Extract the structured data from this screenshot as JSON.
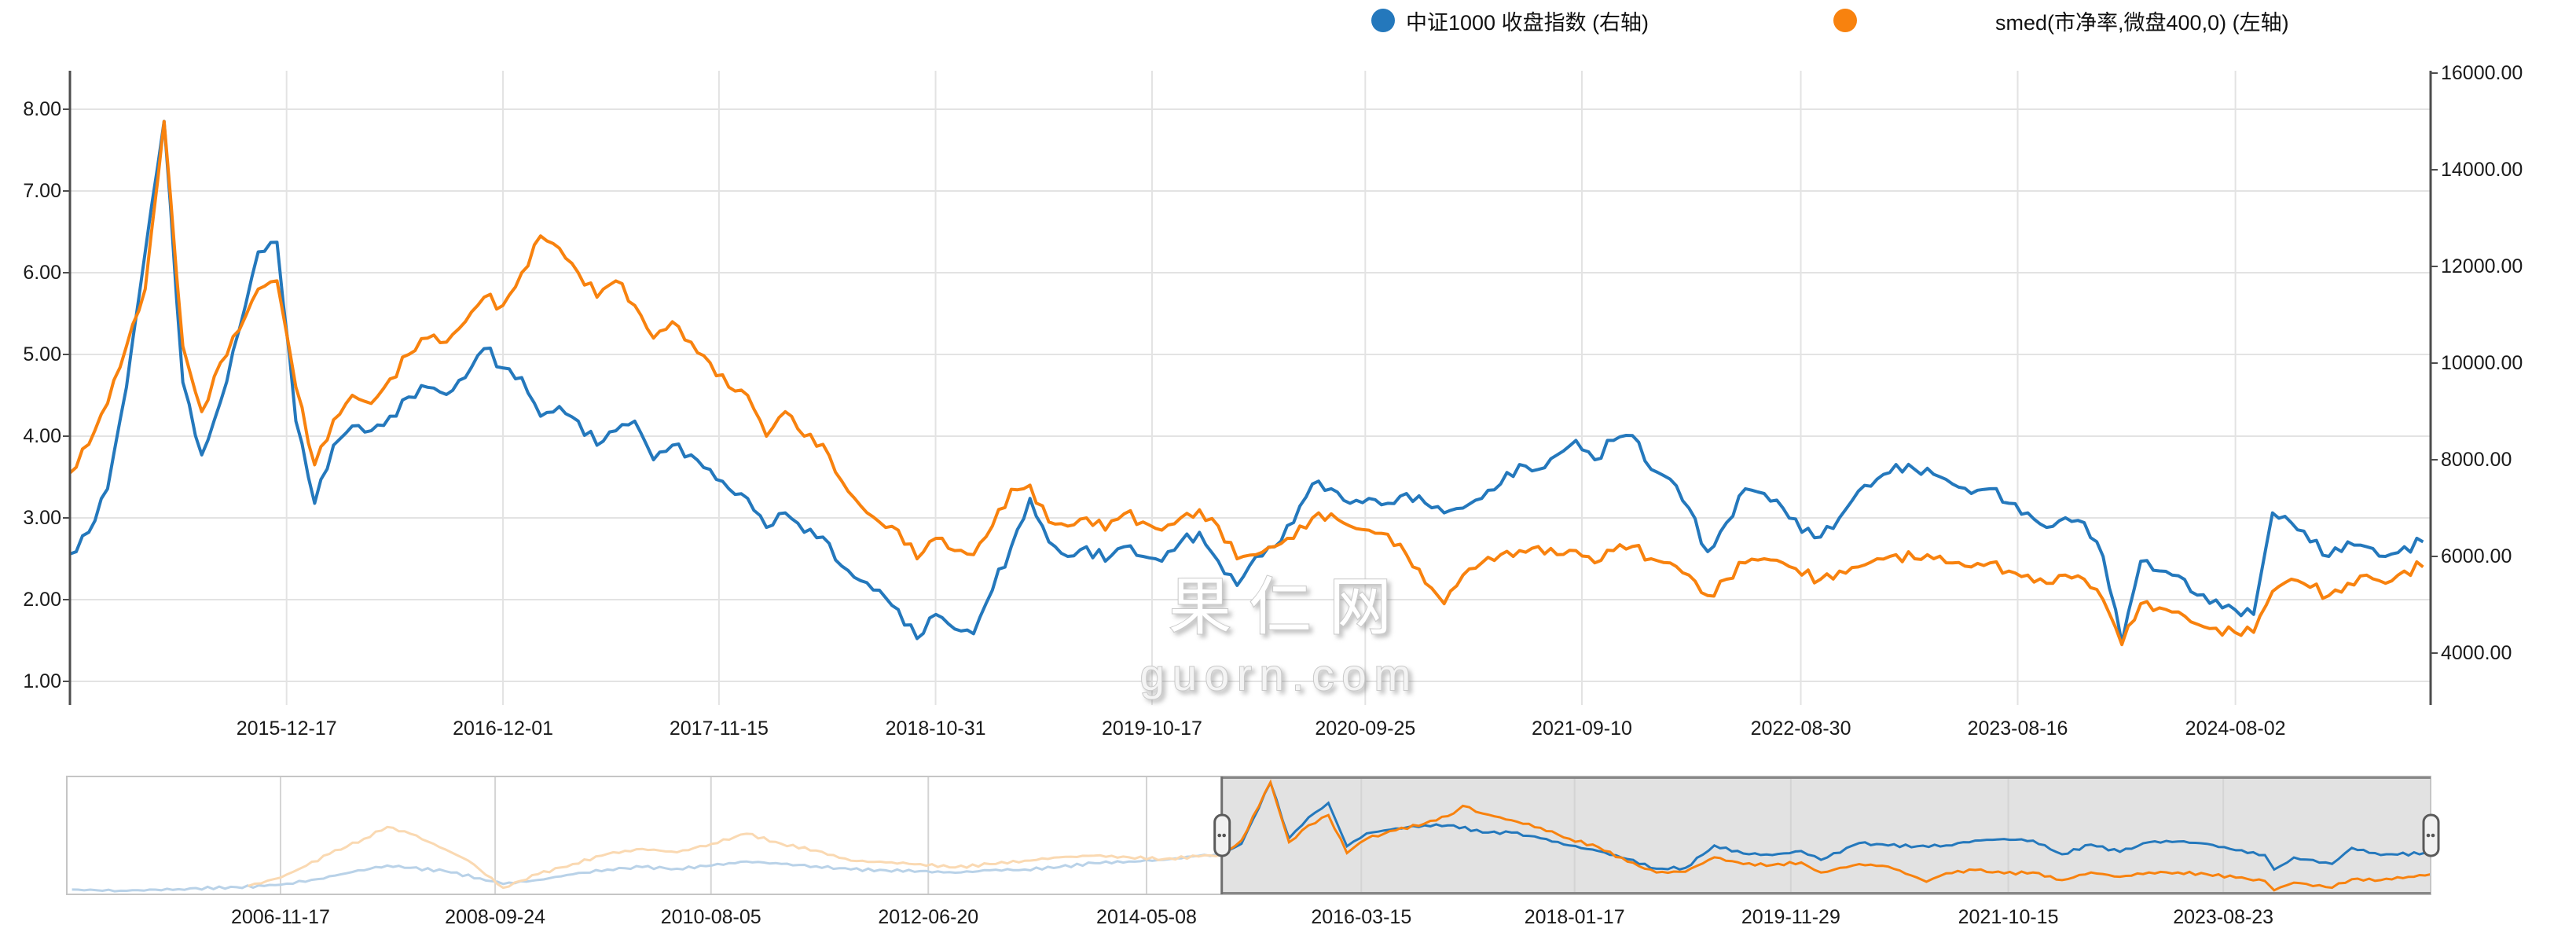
{
  "page": {
    "background": "#ffffff",
    "site": "guorn.com"
  },
  "legend": {
    "items": [
      {
        "label": "中证1000 收盘指数 (右轴)",
        "color": "#2478BC",
        "marker": "circle-icon"
      },
      {
        "label": "smed(市净率,微盘400,0) (左轴)",
        "color": "#F8820E",
        "marker": "circle-icon"
      }
    ]
  },
  "watermark": {
    "line1": "果仁网",
    "line2": "guorn.com"
  },
  "colors": {
    "blue_series": "#2478BC",
    "orange_series": "#F8820E",
    "blue_faded": "#B9D2E8",
    "orange_faded": "#FAD9B2",
    "gridline": "#e3e3e3",
    "axis_line": "#4d4d4d",
    "navigator_mask": "#e2e2e2",
    "navigator_border": "#c5c5c5",
    "selection_border": "#878787"
  },
  "chart_data": [
    {
      "type": "line",
      "role": "main-chart",
      "title": "",
      "x_unit": "decimal-year",
      "x_range": [
        2015.0,
        2025.45
      ],
      "grid": true,
      "legend_position": "top-right",
      "left_axis": {
        "title": "smed(市净率,微盘400,0) (左轴)",
        "ticks": [
          8,
          7,
          6,
          5,
          4,
          3,
          2,
          1
        ],
        "tick_labels": [
          "8.00",
          "7.00",
          "6.00",
          "5.00",
          "4.00",
          "3.00",
          "2.00",
          "1.00"
        ]
      },
      "right_axis": {
        "title": "中证1000 收盘指数 (右轴)",
        "ticks": [
          16000,
          14000,
          12000,
          10000,
          8000,
          6000,
          4000
        ],
        "tick_labels": [
          "16000.00",
          "14000.00",
          "12000.00",
          "10000.00",
          "8000.00",
          "6000.00",
          "4000.00"
        ]
      },
      "x_ticks": [
        {
          "t": 2015.959,
          "label": "2015-12-17"
        },
        {
          "t": 2016.917,
          "label": "2016-12-01"
        },
        {
          "t": 2017.873,
          "label": "2017-11-15"
        },
        {
          "t": 2018.832,
          "label": "2018-10-31"
        },
        {
          "t": 2019.79,
          "label": "2019-10-17"
        },
        {
          "t": 2020.734,
          "label": "2020-09-25"
        },
        {
          "t": 2021.693,
          "label": "2021-09-10"
        },
        {
          "t": 2022.662,
          "label": "2022-08-30"
        },
        {
          "t": 2023.622,
          "label": "2023-08-16"
        },
        {
          "t": 2024.586,
          "label": "2024-08-02"
        }
      ],
      "series": [
        {
          "name": "中证1000 收盘指数 (右轴)",
          "axis": "right",
          "color": "#2478BC",
          "t_start": 2015.0,
          "t_step": 0.0833333,
          "values": [
            6050,
            6500,
            7400,
            9500,
            12300,
            15000,
            9600,
            8100,
            9200,
            10700,
            12300,
            12500,
            8800,
            7100,
            8300,
            8700,
            8600,
            8900,
            9300,
            9500,
            9350,
            9700,
            10300,
            9900,
            9700,
            8900,
            9100,
            8800,
            8300,
            8600,
            8800,
            8000,
            8300,
            8100,
            7800,
            7400,
            7200,
            6600,
            6900,
            6500,
            6400,
            5800,
            5500,
            5300,
            4900,
            4300,
            4800,
            4500,
            4400,
            5300,
            6200,
            7200,
            6300,
            6000,
            6200,
            5900,
            6200,
            6000,
            5900,
            6300,
            6500,
            5900,
            5400,
            6000,
            6200,
            6700,
            7500,
            7400,
            7100,
            7200,
            7100,
            7300,
            7100,
            6900,
            7000,
            7200,
            7500,
            7900,
            7800,
            8100,
            8400,
            8000,
            8400,
            8500,
            7800,
            7600,
            7000,
            6100,
            6700,
            7400,
            7300,
            7000,
            6500,
            6400,
            6800,
            7350,
            7600,
            7900,
            7800,
            7700,
            7500,
            7300,
            7400,
            7100,
            6900,
            6600,
            6800,
            6700,
            6000,
            4200,
            5900,
            5700,
            5600,
            5200,
            5100,
            4900,
            4800,
            6900,
            6700,
            6300,
            6000,
            6300,
            6200,
            6000,
            6200,
            6300
          ]
        },
        {
          "name": "smed(市净率,微盘400,0) (左轴)",
          "axis": "left",
          "color": "#F8820E",
          "t_start": 2015.0,
          "t_step": 0.0833333,
          "values": [
            3.55,
            3.9,
            4.4,
            5.1,
            5.8,
            7.85,
            5.1,
            4.3,
            4.9,
            5.3,
            5.8,
            5.9,
            4.6,
            3.65,
            4.2,
            4.5,
            4.4,
            4.7,
            5.0,
            5.2,
            5.15,
            5.4,
            5.7,
            5.6,
            6.0,
            6.45,
            6.3,
            6.0,
            5.7,
            5.9,
            5.6,
            5.2,
            5.4,
            5.15,
            4.9,
            4.6,
            4.5,
            4.0,
            4.3,
            4.0,
            3.9,
            3.45,
            3.15,
            2.95,
            2.85,
            2.5,
            2.75,
            2.6,
            2.55,
            2.9,
            3.35,
            3.4,
            2.95,
            2.9,
            3.0,
            2.85,
            3.05,
            2.95,
            2.85,
            3.0,
            3.1,
            2.9,
            2.5,
            2.55,
            2.65,
            2.75,
            3.0,
            3.05,
            2.9,
            2.85,
            2.8,
            2.55,
            2.2,
            1.95,
            2.3,
            2.45,
            2.55,
            2.6,
            2.65,
            2.55,
            2.6,
            2.45,
            2.6,
            2.65,
            2.5,
            2.45,
            2.3,
            2.05,
            2.25,
            2.45,
            2.5,
            2.45,
            2.3,
            2.25,
            2.35,
            2.4,
            2.5,
            2.55,
            2.5,
            2.5,
            2.45,
            2.4,
            2.45,
            2.35,
            2.3,
            2.2,
            2.3,
            2.25,
            2.0,
            1.45,
            1.95,
            1.9,
            1.85,
            1.7,
            1.65,
            1.6,
            1.6,
            2.1,
            2.25,
            2.15,
            2.05,
            2.2,
            2.3,
            2.2,
            2.35,
            2.4
          ]
        }
      ]
    },
    {
      "type": "line",
      "role": "navigator",
      "x_unit": "decimal-year",
      "x_range": [
        2005.035,
        2025.43
      ],
      "selection": [
        2015.0,
        2025.43
      ],
      "x_ticks": [
        {
          "t": 2006.879,
          "label": "2006-11-17"
        },
        {
          "t": 2008.731,
          "label": "2008-09-24"
        },
        {
          "t": 2010.593,
          "label": "2010-08-05"
        },
        {
          "t": 2012.468,
          "label": "2012-06-20"
        },
        {
          "t": 2014.351,
          "label": "2014-05-08"
        },
        {
          "t": 2016.204,
          "label": "2016-03-15"
        },
        {
          "t": 2018.044,
          "label": "2018-01-17"
        },
        {
          "t": 2019.91,
          "label": "2019-11-29"
        },
        {
          "t": 2021.786,
          "label": "2021-10-15"
        },
        {
          "t": 2023.641,
          "label": "2023-08-23"
        }
      ],
      "series": [
        {
          "name": "中证1000 收盘指数",
          "color": "#2478BC",
          "faded_color": "#B9D2E8",
          "scale_range": [
            1300,
            15600
          ],
          "points": [
            [
              2005.08,
              1700
            ],
            [
              2005.5,
              1550
            ],
            [
              2006.0,
              1750
            ],
            [
              2006.5,
              2000
            ],
            [
              2006.88,
              2300
            ],
            [
              2007.2,
              3000
            ],
            [
              2007.5,
              3900
            ],
            [
              2007.8,
              4700
            ],
            [
              2008.0,
              4400
            ],
            [
              2008.3,
              4000
            ],
            [
              2008.6,
              3100
            ],
            [
              2008.8,
              2400
            ],
            [
              2009.1,
              2900
            ],
            [
              2009.4,
              3600
            ],
            [
              2009.7,
              4200
            ],
            [
              2010.0,
              4500
            ],
            [
              2010.3,
              4300
            ],
            [
              2010.6,
              4700
            ],
            [
              2010.9,
              5200
            ],
            [
              2011.2,
              4900
            ],
            [
              2011.5,
              4600
            ],
            [
              2011.8,
              4200
            ],
            [
              2012.1,
              4100
            ],
            [
              2012.4,
              4000
            ],
            [
              2012.7,
              3800
            ],
            [
              2013.0,
              4100
            ],
            [
              2013.3,
              4200
            ],
            [
              2013.6,
              4500
            ],
            [
              2013.9,
              5000
            ],
            [
              2014.2,
              5200
            ],
            [
              2014.5,
              5400
            ],
            [
              2014.8,
              5900
            ],
            [
              2015.0,
              6050
            ],
            [
              2015.17,
              7400
            ],
            [
              2015.42,
              15000
            ],
            [
              2015.58,
              8100
            ],
            [
              2015.75,
              10700
            ],
            [
              2015.92,
              12500
            ],
            [
              2016.08,
              7100
            ],
            [
              2016.25,
              8700
            ],
            [
              2016.5,
              9300
            ],
            [
              2016.75,
              9700
            ],
            [
              2017.0,
              9700
            ],
            [
              2017.25,
              8800
            ],
            [
              2017.5,
              8800
            ],
            [
              2017.75,
              8100
            ],
            [
              2018.0,
              7200
            ],
            [
              2018.25,
              6500
            ],
            [
              2018.5,
              5500
            ],
            [
              2018.75,
              4300
            ],
            [
              2019.0,
              4400
            ],
            [
              2019.25,
              7200
            ],
            [
              2019.5,
              6200
            ],
            [
              2019.75,
              6000
            ],
            [
              2020.0,
              6500
            ],
            [
              2020.17,
              5400
            ],
            [
              2020.5,
              7500
            ],
            [
              2020.75,
              7200
            ],
            [
              2021.0,
              7100
            ],
            [
              2021.25,
              7200
            ],
            [
              2021.5,
              7800
            ],
            [
              2021.75,
              8000
            ],
            [
              2022.0,
              7800
            ],
            [
              2022.25,
              6100
            ],
            [
              2022.5,
              7300
            ],
            [
              2022.75,
              6400
            ],
            [
              2023.0,
              7600
            ],
            [
              2023.25,
              7700
            ],
            [
              2023.5,
              7400
            ],
            [
              2023.75,
              6600
            ],
            [
              2024.0,
              6000
            ],
            [
              2024.08,
              4200
            ],
            [
              2024.25,
              5700
            ],
            [
              2024.58,
              4900
            ],
            [
              2024.75,
              6900
            ],
            [
              2025.0,
              6000
            ],
            [
              2025.43,
              6300
            ]
          ]
        },
        {
          "name": "smed(市净率,微盘400,0)",
          "color": "#F8820E",
          "faded_color": "#FAD9B2",
          "scale_range": [
            1.3,
            8.1
          ],
          "points": [
            [
              2006.6,
              1.7
            ],
            [
              2006.88,
              2.2
            ],
            [
              2007.1,
              2.9
            ],
            [
              2007.3,
              3.6
            ],
            [
              2007.6,
              4.5
            ],
            [
              2007.8,
              5.2
            ],
            [
              2008.0,
              4.8
            ],
            [
              2008.2,
              4.2
            ],
            [
              2008.5,
              3.2
            ],
            [
              2008.8,
              1.6
            ],
            [
              2009.1,
              2.4
            ],
            [
              2009.4,
              3.0
            ],
            [
              2009.7,
              3.6
            ],
            [
              2010.0,
              3.9
            ],
            [
              2010.3,
              3.7
            ],
            [
              2010.6,
              4.2
            ],
            [
              2010.9,
              4.8
            ],
            [
              2011.2,
              4.2
            ],
            [
              2011.5,
              3.8
            ],
            [
              2011.8,
              3.2
            ],
            [
              2012.1,
              3.1
            ],
            [
              2012.4,
              3.0
            ],
            [
              2012.7,
              2.8
            ],
            [
              2013.0,
              3.0
            ],
            [
              2013.3,
              3.2
            ],
            [
              2013.6,
              3.4
            ],
            [
              2013.9,
              3.5
            ],
            [
              2014.2,
              3.4
            ],
            [
              2014.5,
              3.3
            ],
            [
              2014.8,
              3.45
            ],
            [
              2015.0,
              3.55
            ],
            [
              2015.17,
              4.4
            ],
            [
              2015.42,
              7.85
            ],
            [
              2015.58,
              4.3
            ],
            [
              2015.75,
              5.3
            ],
            [
              2015.92,
              5.9
            ],
            [
              2016.08,
              3.65
            ],
            [
              2016.25,
              4.5
            ],
            [
              2016.5,
              5.0
            ],
            [
              2016.75,
              5.4
            ],
            [
              2017.0,
              6.0
            ],
            [
              2017.08,
              6.45
            ],
            [
              2017.25,
              6.0
            ],
            [
              2017.5,
              5.6
            ],
            [
              2017.75,
              5.15
            ],
            [
              2018.0,
              4.5
            ],
            [
              2018.25,
              4.0
            ],
            [
              2018.5,
              3.15
            ],
            [
              2018.75,
              2.5
            ],
            [
              2019.0,
              2.55
            ],
            [
              2019.25,
              3.4
            ],
            [
              2019.5,
              3.0
            ],
            [
              2019.75,
              2.95
            ],
            [
              2020.0,
              3.1
            ],
            [
              2020.17,
              2.5
            ],
            [
              2020.5,
              3.0
            ],
            [
              2020.75,
              2.85
            ],
            [
              2021.0,
              2.2
            ],
            [
              2021.08,
              1.95
            ],
            [
              2021.25,
              2.45
            ],
            [
              2021.5,
              2.65
            ],
            [
              2021.75,
              2.45
            ],
            [
              2022.0,
              2.5
            ],
            [
              2022.25,
              2.05
            ],
            [
              2022.5,
              2.5
            ],
            [
              2022.75,
              2.25
            ],
            [
              2023.0,
              2.5
            ],
            [
              2023.25,
              2.5
            ],
            [
              2023.5,
              2.4
            ],
            [
              2023.75,
              2.2
            ],
            [
              2024.0,
              2.0
            ],
            [
              2024.08,
              1.45
            ],
            [
              2024.25,
              1.9
            ],
            [
              2024.58,
              1.6
            ],
            [
              2024.75,
              2.1
            ],
            [
              2025.0,
              2.05
            ],
            [
              2025.43,
              2.4
            ]
          ]
        }
      ]
    }
  ]
}
